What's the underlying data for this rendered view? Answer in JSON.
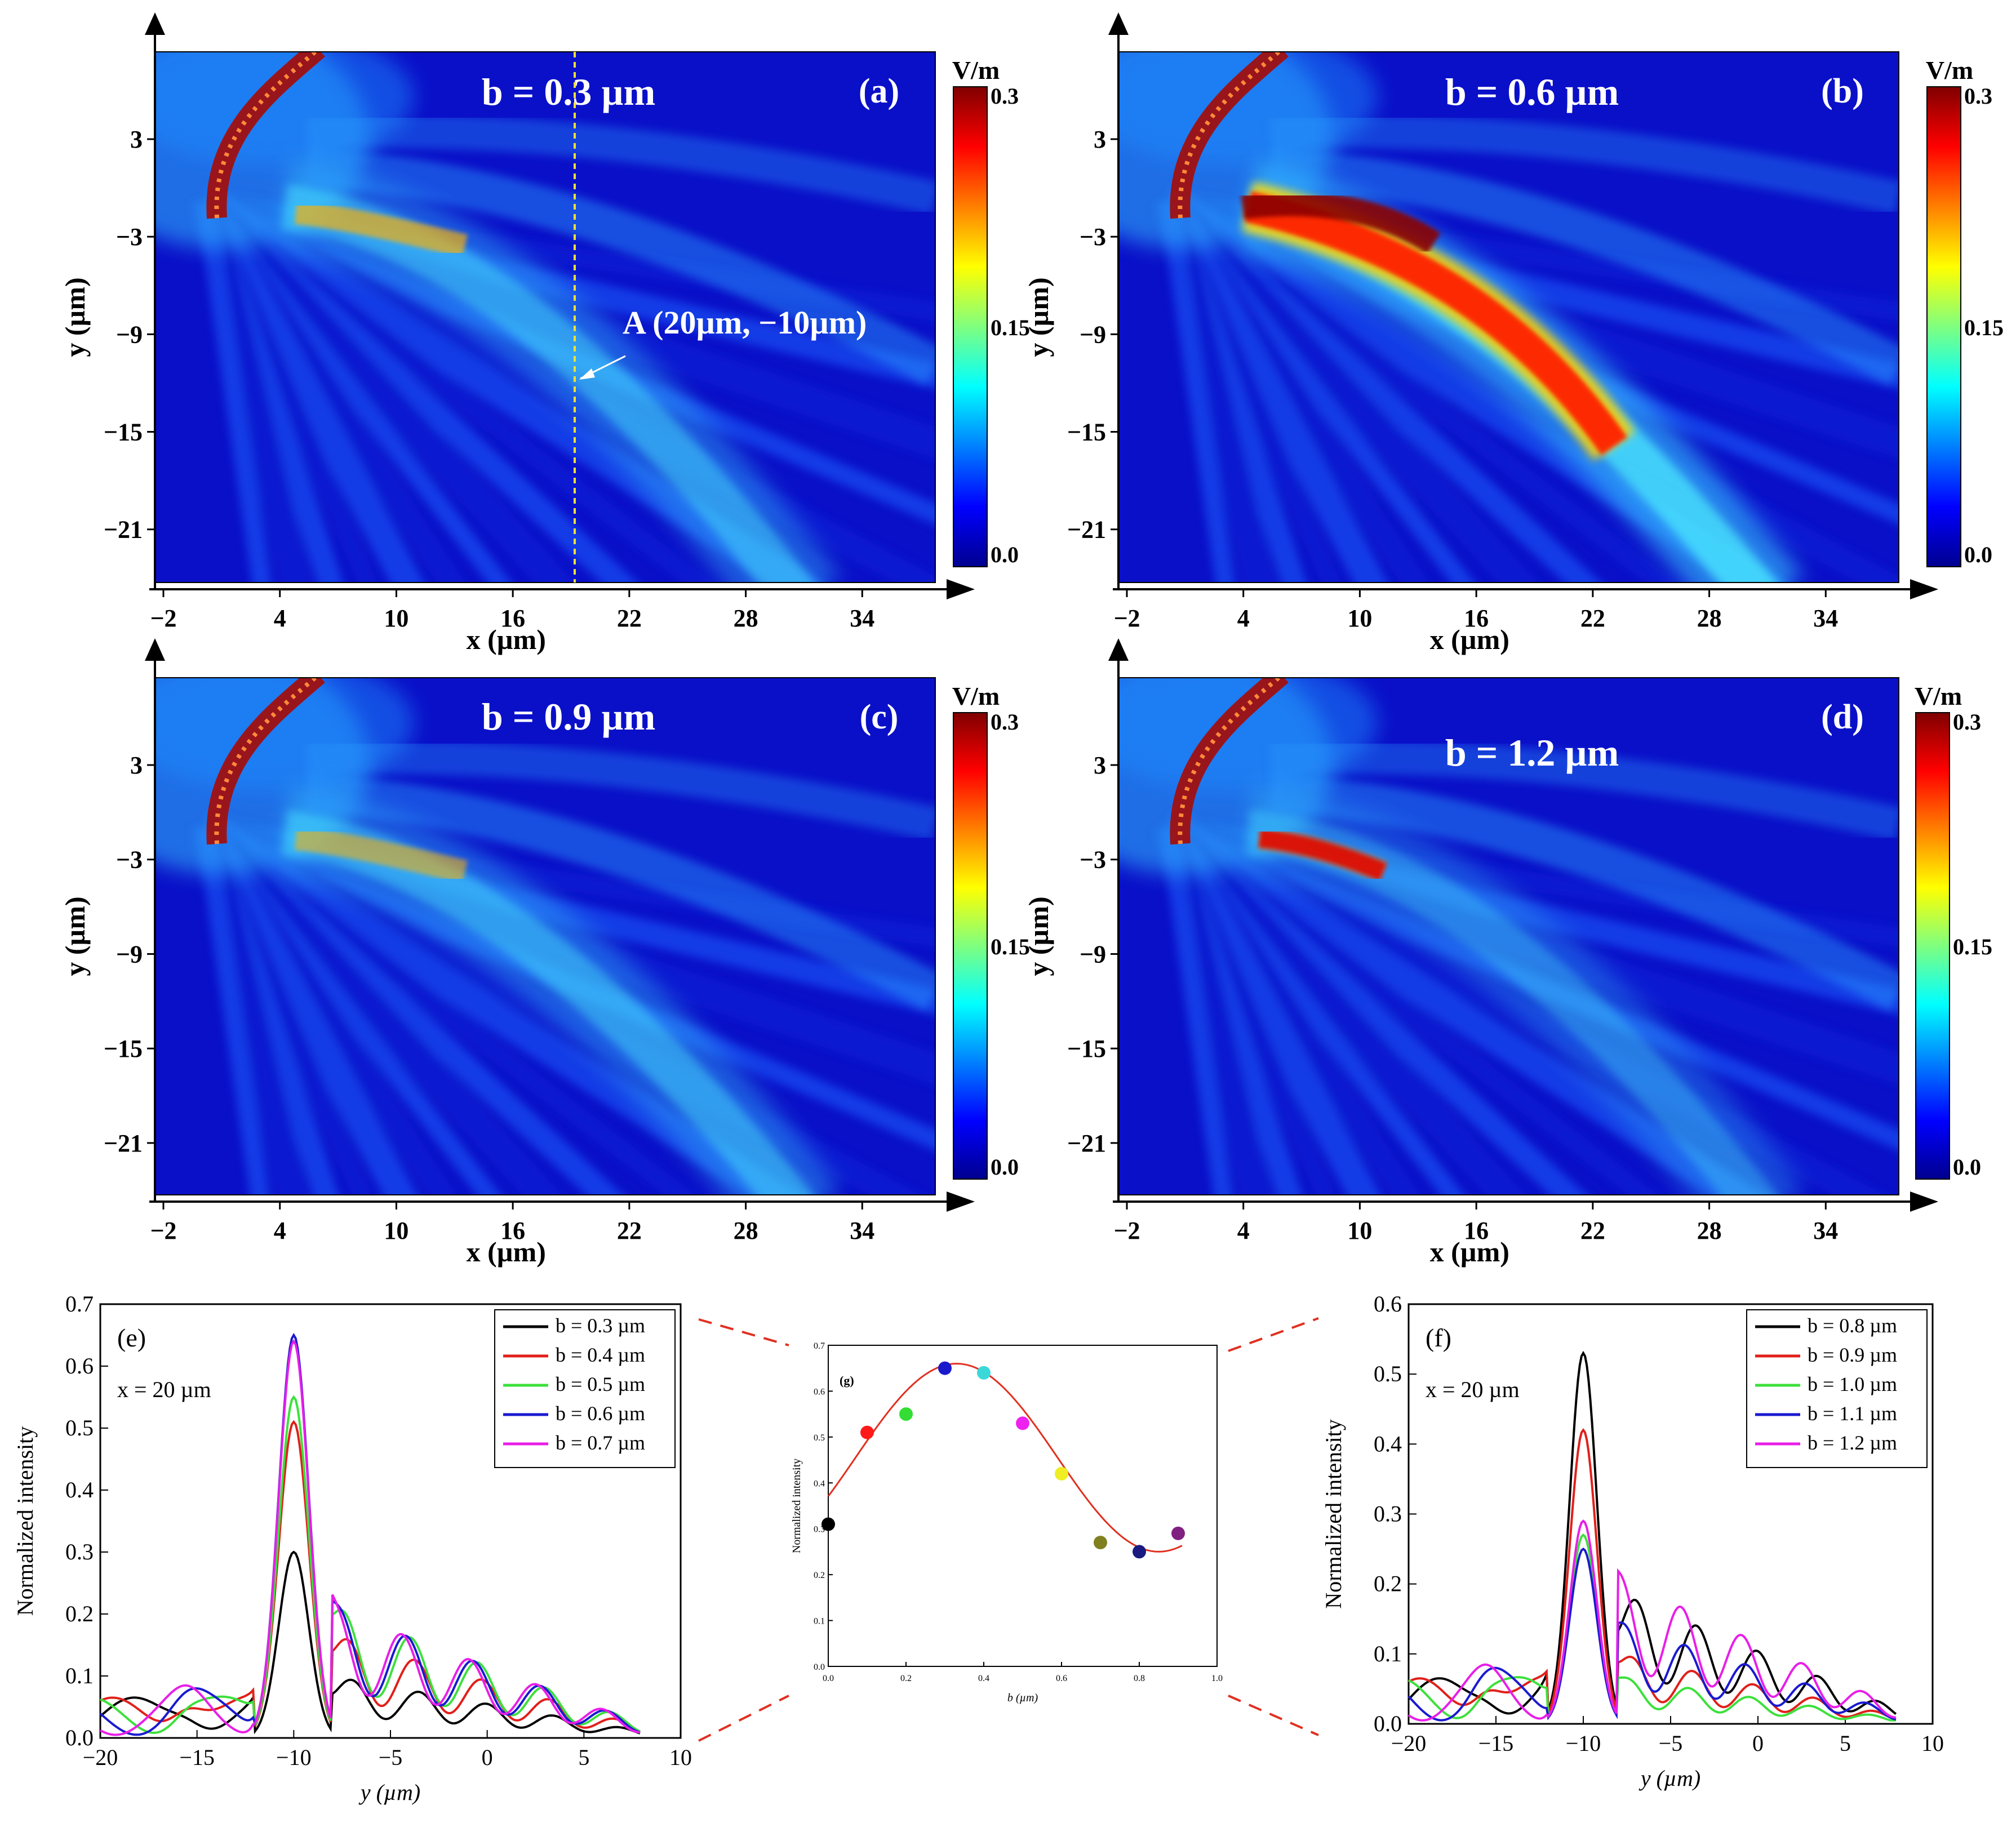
{
  "heatmaps": [
    {
      "id": "a",
      "letter": "(a)",
      "param": "b = 0.3 µm",
      "annotation": "A (20µm, −10µm)",
      "brightness": 0.55,
      "core": 0.95,
      "bend": 0
    },
    {
      "id": "b",
      "letter": "(b)",
      "param": "b = 0.6 µm",
      "annotation": "",
      "brightness": 1.0,
      "core": 1.35,
      "bend": 1
    },
    {
      "id": "c",
      "letter": "(c)",
      "param": "b = 0.9 µm",
      "annotation": "",
      "brightness": 0.55,
      "core": 0.8,
      "bend": 0
    },
    {
      "id": "d",
      "letter": "(d)",
      "param": "b = 1.2 µm",
      "annotation": "",
      "brightness": 0.35,
      "core": 0.45,
      "bend": 2
    }
  ],
  "heatmap_axes": {
    "x_ticks": [
      "−2",
      "4",
      "10",
      "16",
      "22",
      "28",
      "34"
    ],
    "y_ticks": [
      "3",
      "−3",
      "−9",
      "−15",
      "−21"
    ],
    "xlabel": "x (µm)",
    "ylabel": "y (µm)",
    "colorbar_unit": "V/m",
    "colorbar_ticks": [
      "0.3",
      "0.15",
      "0.0"
    ]
  },
  "chart_data": [
    {
      "id": "e",
      "type": "line",
      "panel_label": "(e)",
      "note": "x = 20 µm",
      "xlabel": "y (µm)",
      "ylabel": "Normalized intensity",
      "xlim": [
        -20,
        10
      ],
      "ylim": [
        0,
        0.7
      ],
      "x_ticks": [
        "−20",
        "−15",
        "−10",
        "−5",
        "0",
        "5",
        "10"
      ],
      "y_ticks": [
        "0.0",
        "0.1",
        "0.2",
        "0.3",
        "0.4",
        "0.5",
        "0.6",
        "0.7"
      ],
      "series": [
        {
          "name": "b = 0.3 µm",
          "color": "#000000",
          "peak": 0.3,
          "base": 0.09
        },
        {
          "name": "b = 0.4 µm",
          "color": "#e0201a",
          "peak": 0.51,
          "base": 0.15
        },
        {
          "name": "b = 0.5 µm",
          "color": "#3ce03c",
          "peak": 0.55,
          "base": 0.19
        },
        {
          "name": "b = 0.6 µm",
          "color": "#1a1ad0",
          "peak": 0.65,
          "base": 0.19
        },
        {
          "name": "b = 0.7 µm",
          "color": "#e81ee8",
          "peak": 0.64,
          "base": 0.19
        }
      ]
    },
    {
      "id": "g",
      "type": "scatter",
      "panel_label": "(g)",
      "xlabel": "b (µm)",
      "ylabel": "Normalized intensity",
      "xlim": [
        0,
        1
      ],
      "ylim": [
        0,
        0.7
      ],
      "x_ticks": [
        "0.0",
        "0.2",
        "0.4",
        "0.6",
        "0.8",
        "1.0"
      ],
      "y_ticks": [
        "0.0",
        "0.1",
        "0.2",
        "0.3",
        "0.4",
        "0.5",
        "0.6",
        "0.7"
      ],
      "points": [
        {
          "x": 0.0,
          "y": 0.31,
          "color": "#000000"
        },
        {
          "x": 0.1,
          "y": 0.51,
          "color": "#ff1a1a"
        },
        {
          "x": 0.2,
          "y": 0.55,
          "color": "#33dd33"
        },
        {
          "x": 0.3,
          "y": 0.65,
          "color": "#1a1acc"
        },
        {
          "x": 0.4,
          "y": 0.64,
          "color": "#3ad8d8"
        },
        {
          "x": 0.5,
          "y": 0.53,
          "color": "#ee22ee"
        },
        {
          "x": 0.6,
          "y": 0.42,
          "color": "#eeee22"
        },
        {
          "x": 0.7,
          "y": 0.27,
          "color": "#808020"
        },
        {
          "x": 0.8,
          "y": 0.25,
          "color": "#1a1a80"
        },
        {
          "x": 0.9,
          "y": 0.29,
          "color": "#802080"
        }
      ],
      "fit_color": "#e03020"
    },
    {
      "id": "f",
      "type": "line",
      "panel_label": "(f)",
      "note": "x = 20 µm",
      "xlabel": "y (µm)",
      "ylabel": "Normalized intensity",
      "xlim": [
        -20,
        10
      ],
      "ylim": [
        0,
        0.6
      ],
      "x_ticks": [
        "−20",
        "−15",
        "−10",
        "−5",
        "0",
        "5",
        "10"
      ],
      "y_ticks": [
        "0.0",
        "0.1",
        "0.2",
        "0.3",
        "0.4",
        "0.5",
        "0.6"
      ],
      "series": [
        {
          "name": "b = 0.8 µm",
          "color": "#000000",
          "peak": 0.53,
          "base": 0.17
        },
        {
          "name": "b = 0.9 µm",
          "color": "#e0201a",
          "peak": 0.42,
          "base": 0.09
        },
        {
          "name": "b = 1.0 µm",
          "color": "#3ce03c",
          "peak": 0.27,
          "base": 0.06
        },
        {
          "name": "b = 1.1 µm",
          "color": "#1a1ad0",
          "peak": 0.25,
          "base": 0.13
        },
        {
          "name": "b = 1.2 µm",
          "color": "#e81ee8",
          "peak": 0.29,
          "base": 0.19
        }
      ]
    }
  ]
}
